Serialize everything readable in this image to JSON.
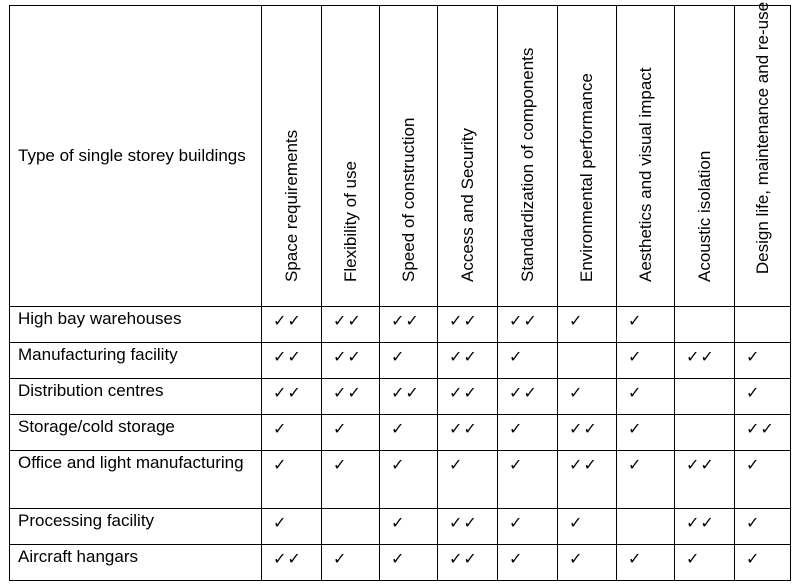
{
  "table": {
    "corner_header": "Type of single storey buildings",
    "columns": [
      "Space  requirements",
      "Flexibility of use",
      "Speed of construction",
      "Access and Security",
      "Standardization of components",
      "Environmental performance",
      "Aesthetics and visual impact",
      "Acoustic isolation",
      "Design life, maintenance and re-use"
    ],
    "rows": [
      {
        "name": "High bay warehouses",
        "marks": [
          "✓✓",
          "✓✓",
          "✓✓",
          "✓✓",
          "✓✓",
          "✓",
          "✓",
          "",
          ""
        ]
      },
      {
        "name": "Manufacturing facility",
        "marks": [
          "✓✓",
          "✓✓",
          "✓",
          "✓✓",
          "✓",
          "",
          "✓",
          "✓✓",
          "✓"
        ]
      },
      {
        "name": "Distribution centres",
        "marks": [
          "✓✓",
          "✓✓",
          "✓✓",
          "✓✓",
          "✓✓",
          "✓",
          "✓",
          "",
          "✓"
        ]
      },
      {
        "name": "Storage/cold storage",
        "marks": [
          "✓",
          "✓",
          "✓",
          "✓✓",
          "✓",
          "✓✓",
          "✓",
          "",
          "✓✓"
        ]
      },
      {
        "name": "Office and light manufacturing",
        "marks": [
          "✓",
          "✓",
          "✓",
          "✓",
          "✓",
          "✓✓",
          "✓",
          "✓✓",
          "✓"
        ]
      },
      {
        "name": "Processing facility",
        "marks": [
          "✓",
          "",
          "✓",
          "✓✓",
          "✓",
          "✓",
          "",
          "✓✓",
          "✓"
        ]
      },
      {
        "name": "Aircraft hangars",
        "marks": [
          "✓✓",
          "✓",
          "✓",
          "✓✓",
          "✓",
          "✓",
          "✓",
          "✓",
          "✓"
        ]
      }
    ]
  }
}
